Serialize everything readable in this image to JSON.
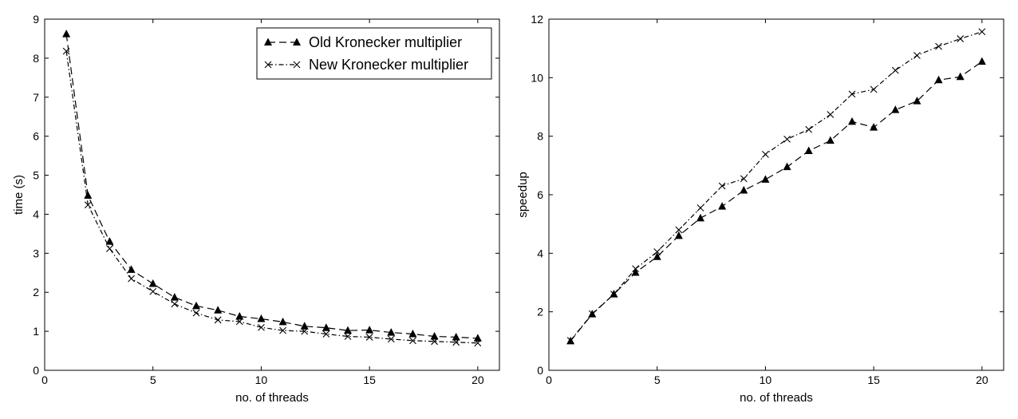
{
  "chart_data": [
    {
      "type": "line",
      "title": "",
      "xlabel": "no. of threads",
      "ylabel": "time (s)",
      "xlim": [
        0,
        21
      ],
      "ylim": [
        0,
        9
      ],
      "xticks": [
        0,
        5,
        10,
        15,
        20
      ],
      "yticks": [
        0,
        1,
        2,
        3,
        4,
        5,
        6,
        7,
        8,
        9
      ],
      "grid": false,
      "legend_position": "top-right",
      "x": [
        1,
        2,
        3,
        4,
        5,
        6,
        7,
        8,
        9,
        10,
        11,
        12,
        13,
        14,
        15,
        16,
        17,
        18,
        19,
        20
      ],
      "series": [
        {
          "name": "Old Kronecker multiplier",
          "marker": "triangle",
          "linestyle": "dashed",
          "values": [
            8.62,
            4.48,
            3.3,
            2.58,
            2.22,
            1.87,
            1.65,
            1.54,
            1.38,
            1.32,
            1.24,
            1.13,
            1.09,
            1.02,
            1.03,
            0.97,
            0.93,
            0.87,
            0.85,
            0.82
          ]
        },
        {
          "name": "New Kronecker multiplier",
          "marker": "x",
          "linestyle": "dashdot",
          "values": [
            8.18,
            4.24,
            3.12,
            2.35,
            2.02,
            1.7,
            1.47,
            1.29,
            1.25,
            1.1,
            1.02,
            1.0,
            0.93,
            0.87,
            0.85,
            0.8,
            0.76,
            0.74,
            0.72,
            0.7
          ]
        }
      ]
    },
    {
      "type": "line",
      "title": "",
      "xlabel": "no. of threads",
      "ylabel": "speedup",
      "xlim": [
        0,
        21
      ],
      "ylim": [
        0,
        12
      ],
      "xticks": [
        0,
        5,
        10,
        15,
        20
      ],
      "yticks": [
        0,
        2,
        4,
        6,
        8,
        10,
        12
      ],
      "grid": false,
      "x": [
        1,
        2,
        3,
        4,
        5,
        6,
        7,
        8,
        9,
        10,
        11,
        12,
        13,
        14,
        15,
        16,
        17,
        18,
        19,
        20
      ],
      "series": [
        {
          "marker": "triangle",
          "linestyle": "dashed",
          "values": [
            1.0,
            1.92,
            2.6,
            3.34,
            3.88,
            4.6,
            5.2,
            5.6,
            6.15,
            6.52,
            6.95,
            7.5,
            7.85,
            8.5,
            8.3,
            8.9,
            9.2,
            9.92,
            10.03,
            10.55
          ]
        },
        {
          "marker": "x",
          "linestyle": "dashdot",
          "values": [
            1.02,
            1.93,
            2.6,
            3.47,
            4.05,
            4.8,
            5.55,
            6.3,
            6.55,
            7.38,
            7.9,
            8.23,
            8.74,
            9.44,
            9.6,
            10.25,
            10.76,
            11.07,
            11.33,
            11.57
          ]
        }
      ]
    }
  ]
}
